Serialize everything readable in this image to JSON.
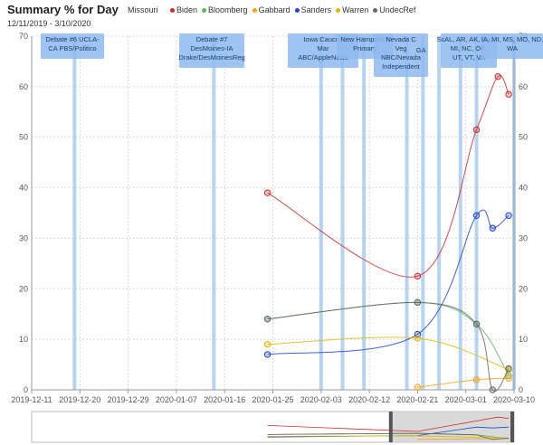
{
  "header": {
    "title": "Summary % for Day",
    "date_range": "12/11/2019 - 3/10/2020",
    "state": "Missouri"
  },
  "chart_data": {
    "type": "line",
    "title": "Summary % for Day",
    "x_type": "date",
    "xlim": [
      "2019-12-11",
      "2020-03-10"
    ],
    "ylim": [
      0,
      70
    ],
    "y_ticks": [
      0,
      10,
      20,
      30,
      40,
      50,
      60,
      70
    ],
    "x_ticks": [
      "2019-12-11",
      "2019-12-20",
      "2019-12-29",
      "2020-01-07",
      "2020-01-16",
      "2020-01-25",
      "2020-02-03",
      "2020-02-12",
      "2020-02-21",
      "2020-03-01",
      "2020-03-10"
    ],
    "grid": true,
    "legend_position": "top",
    "series": [
      {
        "name": "Biden",
        "color": "#d62728",
        "points": [
          [
            "2020-01-24",
            39
          ],
          [
            "2020-02-21",
            22.5
          ],
          [
            "2020-03-03",
            51.5
          ],
          [
            "2020-03-07",
            62
          ],
          [
            "2020-03-09",
            58.5
          ]
        ]
      },
      {
        "name": "Bloomberg",
        "color": "#5cb85c",
        "points": [
          [
            "2020-01-24",
            14
          ],
          [
            "2020-02-21",
            17.3
          ],
          [
            "2020-03-03",
            13
          ],
          [
            "2020-03-09",
            2.8
          ]
        ]
      },
      {
        "name": "Gabbard",
        "color": "#ff9f1a",
        "points": [
          [
            "2020-02-21",
            0.5
          ],
          [
            "2020-03-03",
            2
          ],
          [
            "2020-03-09",
            2.3
          ]
        ]
      },
      {
        "name": "Sanders",
        "color": "#2244cc",
        "points": [
          [
            "2020-01-24",
            7
          ],
          [
            "2020-02-21",
            11
          ],
          [
            "2020-03-03",
            34.5
          ],
          [
            "2020-03-06",
            32
          ],
          [
            "2020-03-09",
            34.5
          ]
        ]
      },
      {
        "name": "Warren",
        "color": "#e6b800",
        "points": [
          [
            "2020-01-24",
            9
          ],
          [
            "2020-02-21",
            10.2
          ],
          [
            "2020-03-09",
            4
          ]
        ]
      },
      {
        "name": "UndecRef",
        "color": "#666666",
        "points": [
          [
            "2020-01-24",
            14
          ],
          [
            "2020-02-21",
            17.3
          ],
          [
            "2020-03-03",
            13
          ],
          [
            "2020-03-06",
            0
          ],
          [
            "2020-03-09",
            4.2
          ]
        ]
      }
    ],
    "events": [
      {
        "date": "2019-12-19",
        "label": [
          "Debate #6 UCLA-",
          "CA PBS/Politico"
        ]
      },
      {
        "date": "2020-01-14",
        "label": [
          "Debate #7",
          "DesMoines-IA",
          "Drake/DesMoinesReg"
        ]
      },
      {
        "date": "2020-02-03",
        "label": [
          "Iowa Caucus",
          "Mar",
          "ABC/AppleNews"
        ]
      },
      {
        "date": "2020-02-07",
        "label": [
          "",
          ""
        ]
      },
      {
        "date": "2020-02-11",
        "label": [
          "New Hampshire",
          "Primary"
        ]
      },
      {
        "date": "2020-02-19",
        "label": [
          "Nevada C",
          "Veg",
          "NBC/Nevada",
          "Independent"
        ]
      },
      {
        "date": "2020-02-22",
        "label": [
          "GA"
        ]
      },
      {
        "date": "2020-02-25",
        "label": [
          "Sc"
        ]
      },
      {
        "date": "2020-02-29",
        "label": [
          "AL, AR, AK, CA,",
          "MI, NC, OK,",
          "UT, VT, VA"
        ]
      },
      {
        "date": "2020-03-03",
        "label": [
          "IA, MI, MS, MO, ND,",
          "WA"
        ]
      },
      {
        "date": "2020-03-10",
        "label": [
          ""
        ]
      }
    ]
  },
  "legend_colors": {
    "Biden": "#d62728",
    "Bloomberg": "#5cb85c",
    "Gabbard": "#ff9f1a",
    "Sanders": "#2244cc",
    "Warren": "#e6b800",
    "UndecRef": "#666666"
  }
}
